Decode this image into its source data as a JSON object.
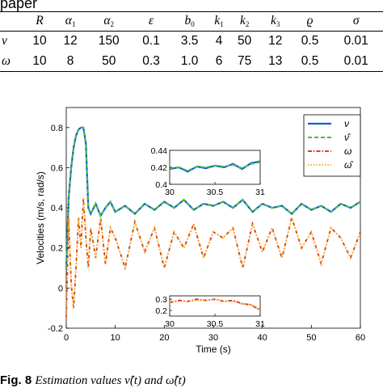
{
  "top_caption": "paper",
  "table": {
    "headers": [
      "",
      "R",
      "α1",
      "α2",
      "ε",
      "b0",
      "k1",
      "k2",
      "k3",
      "ϱ",
      "σ"
    ],
    "rows": [
      {
        "label": "ν",
        "cells": [
          "10",
          "12",
          "150",
          "0.1",
          "3.5",
          "4",
          "50",
          "12",
          "0.5",
          "0.01"
        ]
      },
      {
        "label": "ω",
        "cells": [
          "10",
          "8",
          "50",
          "0.3",
          "1.0",
          "6",
          "75",
          "13",
          "0.5",
          "0.01"
        ]
      }
    ]
  },
  "figure_caption": {
    "label": "Fig. 8",
    "text": "Estimation values ν̂(t) and ω̂(t)"
  },
  "chart_data": [
    {
      "type": "line",
      "title": "",
      "xlabel": "Time (s)",
      "ylabel": "Velocities (m/s, rad/s)",
      "xlim": [
        0,
        60
      ],
      "ylim": [
        -0.2,
        0.9
      ],
      "xticks": [
        "0",
        "10",
        "20",
        "30",
        "40",
        "50",
        "60"
      ],
      "yticks": [
        "-0.2",
        "0",
        "0.2",
        "0.4",
        "0.6",
        "0.8"
      ],
      "legend_position": "top-right",
      "legend": [
        "ν",
        "ν̂",
        "ω",
        "ω̂"
      ],
      "colors": {
        "nu": "#0a5fd6",
        "nu_hat": "#4db848",
        "omega": "#d62020",
        "omega_hat": "#f2a51b"
      },
      "series": [
        {
          "name": "ν",
          "x": [
            0,
            0.5,
            1,
            1.5,
            2,
            2.5,
            3,
            3.5,
            4,
            4.5,
            5,
            6,
            7,
            8,
            9,
            10,
            12,
            14,
            16,
            18,
            20,
            22,
            24,
            26,
            28,
            30,
            32,
            34,
            36,
            38,
            40,
            42,
            44,
            46,
            48,
            50,
            52,
            54,
            56,
            58,
            60
          ],
          "y": [
            0.1,
            0.45,
            0.6,
            0.7,
            0.76,
            0.79,
            0.8,
            0.8,
            0.72,
            0.4,
            0.37,
            0.42,
            0.36,
            0.4,
            0.43,
            0.38,
            0.41,
            0.37,
            0.42,
            0.39,
            0.43,
            0.4,
            0.44,
            0.39,
            0.42,
            0.41,
            0.43,
            0.4,
            0.44,
            0.38,
            0.42,
            0.4,
            0.41,
            0.37,
            0.42,
            0.39,
            0.41,
            0.38,
            0.42,
            0.4,
            0.43
          ]
        },
        {
          "name": "ν̂",
          "x": [
            0,
            0.5,
            1,
            1.5,
            2,
            2.5,
            3,
            3.5,
            4,
            4.5,
            5,
            6,
            7,
            8,
            9,
            10,
            12,
            14,
            16,
            18,
            20,
            22,
            24,
            26,
            28,
            30,
            32,
            34,
            36,
            38,
            40,
            42,
            44,
            46,
            48,
            50,
            52,
            54,
            56,
            58,
            60
          ],
          "y": [
            0.1,
            0.45,
            0.6,
            0.7,
            0.76,
            0.79,
            0.8,
            0.8,
            0.72,
            0.4,
            0.37,
            0.42,
            0.36,
            0.4,
            0.43,
            0.38,
            0.41,
            0.37,
            0.42,
            0.39,
            0.43,
            0.4,
            0.44,
            0.39,
            0.42,
            0.41,
            0.43,
            0.4,
            0.44,
            0.38,
            0.42,
            0.4,
            0.41,
            0.37,
            0.42,
            0.39,
            0.41,
            0.38,
            0.42,
            0.4,
            0.43
          ]
        },
        {
          "name": "ω",
          "x": [
            0,
            0.5,
            1,
            1.5,
            2,
            2.5,
            3,
            3.5,
            4,
            4.5,
            5,
            6,
            7,
            8,
            9,
            10,
            12,
            14,
            16,
            18,
            20,
            22,
            24,
            26,
            28,
            30,
            32,
            34,
            36,
            38,
            40,
            42,
            44,
            46,
            48,
            50,
            52,
            54,
            56,
            58,
            60
          ],
          "y": [
            -0.15,
            0.35,
            0.02,
            -0.1,
            0.1,
            0.35,
            0.2,
            0.45,
            0.25,
            0.1,
            0.3,
            0.15,
            0.35,
            0.12,
            0.3,
            0.25,
            0.1,
            0.33,
            0.18,
            0.3,
            0.1,
            0.28,
            0.2,
            0.32,
            0.15,
            0.28,
            0.25,
            0.3,
            0.1,
            0.32,
            0.18,
            0.3,
            0.15,
            0.35,
            0.2,
            0.28,
            0.12,
            0.3,
            0.25,
            0.15,
            0.28
          ]
        },
        {
          "name": "ω̂",
          "x": [
            0,
            0.5,
            1,
            1.5,
            2,
            2.5,
            3,
            3.5,
            4,
            4.5,
            5,
            6,
            7,
            8,
            9,
            10,
            12,
            14,
            16,
            18,
            20,
            22,
            24,
            26,
            28,
            30,
            32,
            34,
            36,
            38,
            40,
            42,
            44,
            46,
            48,
            50,
            52,
            54,
            56,
            58,
            60
          ],
          "y": [
            -0.15,
            0.35,
            0.02,
            -0.1,
            0.1,
            0.35,
            0.2,
            0.45,
            0.25,
            0.1,
            0.3,
            0.15,
            0.35,
            0.12,
            0.3,
            0.25,
            0.1,
            0.33,
            0.18,
            0.3,
            0.1,
            0.28,
            0.2,
            0.32,
            0.15,
            0.28,
            0.25,
            0.3,
            0.1,
            0.32,
            0.18,
            0.3,
            0.15,
            0.35,
            0.2,
            0.28,
            0.12,
            0.3,
            0.25,
            0.15,
            0.28
          ]
        }
      ]
    },
    {
      "type": "line",
      "title": "",
      "xlim": [
        30,
        31
      ],
      "ylim": [
        0.4,
        0.44
      ],
      "xticks": [
        "30",
        "30.5",
        "31"
      ],
      "yticks": [
        "0.4",
        "0.42",
        "0.44"
      ],
      "series": [
        {
          "name": "ν",
          "x": [
            30,
            30.1,
            30.2,
            30.3,
            30.4,
            30.5,
            30.6,
            30.7,
            30.8,
            30.9,
            31
          ],
          "y": [
            0.418,
            0.42,
            0.415,
            0.421,
            0.419,
            0.422,
            0.42,
            0.424,
            0.418,
            0.425,
            0.427
          ]
        },
        {
          "name": "ν̂",
          "x": [
            30,
            30.1,
            30.2,
            30.3,
            30.4,
            30.5,
            30.6,
            30.7,
            30.8,
            30.9,
            31
          ],
          "y": [
            0.419,
            0.42,
            0.416,
            0.421,
            0.42,
            0.422,
            0.421,
            0.423,
            0.419,
            0.424,
            0.426
          ]
        }
      ]
    },
    {
      "type": "line",
      "title": "",
      "xlim": [
        30,
        31
      ],
      "ylim": [
        0.15,
        0.33
      ],
      "xticks": [
        "30",
        "30.5",
        "31"
      ],
      "yticks": [
        "0.2",
        "0.3"
      ],
      "series": [
        {
          "name": "ω",
          "x": [
            30,
            30.1,
            30.2,
            30.3,
            30.4,
            30.5,
            30.6,
            30.7,
            30.8,
            30.9,
            31
          ],
          "y": [
            0.27,
            0.29,
            0.28,
            0.3,
            0.29,
            0.3,
            0.28,
            0.29,
            0.26,
            0.25,
            0.2
          ]
        },
        {
          "name": "ω̂",
          "x": [
            30,
            30.1,
            30.2,
            30.3,
            30.4,
            30.5,
            30.6,
            30.7,
            30.8,
            30.9,
            31
          ],
          "y": [
            0.27,
            0.28,
            0.28,
            0.29,
            0.29,
            0.3,
            0.28,
            0.28,
            0.26,
            0.25,
            0.21
          ]
        }
      ]
    }
  ]
}
